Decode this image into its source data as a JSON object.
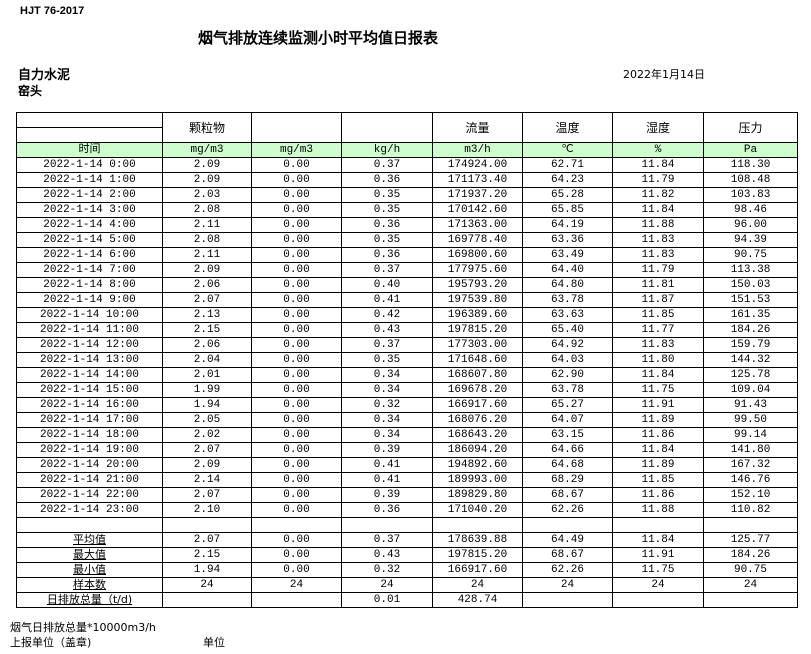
{
  "standard": "HJT  76-2017",
  "title": "烟气排放连续监测小时平均值日报表",
  "company": "自力水泥",
  "site": "窑头",
  "date": "2022年1月14日",
  "header": {
    "columns": [
      "",
      "颗粒物",
      "",
      "",
      "流量",
      "温度",
      "湿度",
      "压力"
    ],
    "units": [
      "时间",
      "mg/m3",
      "mg/m3",
      "kg/h",
      "m3/h",
      "℃",
      "%",
      "Pa"
    ]
  },
  "unit_row_color": "#ccffcc",
  "rows": [
    [
      "2022-1-14 0:00",
      "2.09",
      "0.00",
      "0.37",
      "174924.00",
      "62.71",
      "11.84",
      "118.30"
    ],
    [
      "2022-1-14 1:00",
      "2.09",
      "0.00",
      "0.36",
      "171173.40",
      "64.23",
      "11.79",
      "108.48"
    ],
    [
      "2022-1-14 2:00",
      "2.03",
      "0.00",
      "0.35",
      "171937.20",
      "65.28",
      "11.82",
      "103.83"
    ],
    [
      "2022-1-14 3:00",
      "2.08",
      "0.00",
      "0.35",
      "170142.60",
      "65.85",
      "11.84",
      "98.46"
    ],
    [
      "2022-1-14 4:00",
      "2.11",
      "0.00",
      "0.36",
      "171363.00",
      "64.19",
      "11.88",
      "96.00"
    ],
    [
      "2022-1-14 5:00",
      "2.08",
      "0.00",
      "0.35",
      "169778.40",
      "63.36",
      "11.83",
      "94.39"
    ],
    [
      "2022-1-14 6:00",
      "2.11",
      "0.00",
      "0.36",
      "169800.60",
      "63.49",
      "11.83",
      "90.75"
    ],
    [
      "2022-1-14 7:00",
      "2.09",
      "0.00",
      "0.37",
      "177975.60",
      "64.40",
      "11.79",
      "113.38"
    ],
    [
      "2022-1-14 8:00",
      "2.06",
      "0.00",
      "0.40",
      "195793.20",
      "64.80",
      "11.81",
      "150.03"
    ],
    [
      "2022-1-14 9:00",
      "2.07",
      "0.00",
      "0.41",
      "197539.80",
      "63.78",
      "11.87",
      "151.53"
    ],
    [
      "2022-1-14 10:00",
      "2.13",
      "0.00",
      "0.42",
      "196389.60",
      "63.63",
      "11.85",
      "161.35"
    ],
    [
      "2022-1-14 11:00",
      "2.15",
      "0.00",
      "0.43",
      "197815.20",
      "65.40",
      "11.77",
      "184.26"
    ],
    [
      "2022-1-14 12:00",
      "2.06",
      "0.00",
      "0.37",
      "177303.00",
      "64.92",
      "11.83",
      "159.79"
    ],
    [
      "2022-1-14 13:00",
      "2.04",
      "0.00",
      "0.35",
      "171648.60",
      "64.03",
      "11.80",
      "144.32"
    ],
    [
      "2022-1-14 14:00",
      "2.01",
      "0.00",
      "0.34",
      "168607.80",
      "62.90",
      "11.84",
      "125.78"
    ],
    [
      "2022-1-14 15:00",
      "1.99",
      "0.00",
      "0.34",
      "169678.20",
      "63.78",
      "11.75",
      "109.04"
    ],
    [
      "2022-1-14 16:00",
      "1.94",
      "0.00",
      "0.32",
      "166917.60",
      "65.27",
      "11.91",
      "91.43"
    ],
    [
      "2022-1-14 17:00",
      "2.05",
      "0.00",
      "0.34",
      "168076.20",
      "64.07",
      "11.89",
      "99.50"
    ],
    [
      "2022-1-14 18:00",
      "2.02",
      "0.00",
      "0.34",
      "168643.20",
      "63.15",
      "11.86",
      "99.14"
    ],
    [
      "2022-1-14 19:00",
      "2.07",
      "0.00",
      "0.39",
      "186094.20",
      "64.66",
      "11.84",
      "141.80"
    ],
    [
      "2022-1-14 20:00",
      "2.09",
      "0.00",
      "0.41",
      "194892.60",
      "64.68",
      "11.89",
      "167.32"
    ],
    [
      "2022-1-14 21:00",
      "2.14",
      "0.00",
      "0.41",
      "189993.00",
      "68.29",
      "11.85",
      "146.76"
    ],
    [
      "2022-1-14 22:00",
      "2.07",
      "0.00",
      "0.39",
      "189829.80",
      "68.67",
      "11.86",
      "152.10"
    ],
    [
      "2022-1-14 23:00",
      "2.10",
      "0.00",
      "0.36",
      "171040.20",
      "62.26",
      "11.88",
      "110.82"
    ]
  ],
  "summary": [
    [
      "平均值",
      "2.07",
      "0.00",
      "0.37",
      "178639.88",
      "64.49",
      "11.84",
      "125.77"
    ],
    [
      "最大值",
      "2.15",
      "0.00",
      "0.43",
      "197815.20",
      "68.67",
      "11.91",
      "184.26"
    ],
    [
      "最小值",
      "1.94",
      "0.00",
      "0.32",
      "166917.60",
      "62.26",
      "11.75",
      "90.75"
    ],
    [
      "样本数",
      "24",
      "24",
      "24",
      "24",
      "24",
      "24",
      "24"
    ],
    [
      "日排放总量（t/d)",
      "",
      "",
      "0.01",
      "428.74",
      "",
      "",
      ""
    ]
  ],
  "footer": {
    "total_note": "烟气日排放总量*10000m3/h",
    "reporter": "上报单位（盖章)",
    "unit": "单位"
  }
}
